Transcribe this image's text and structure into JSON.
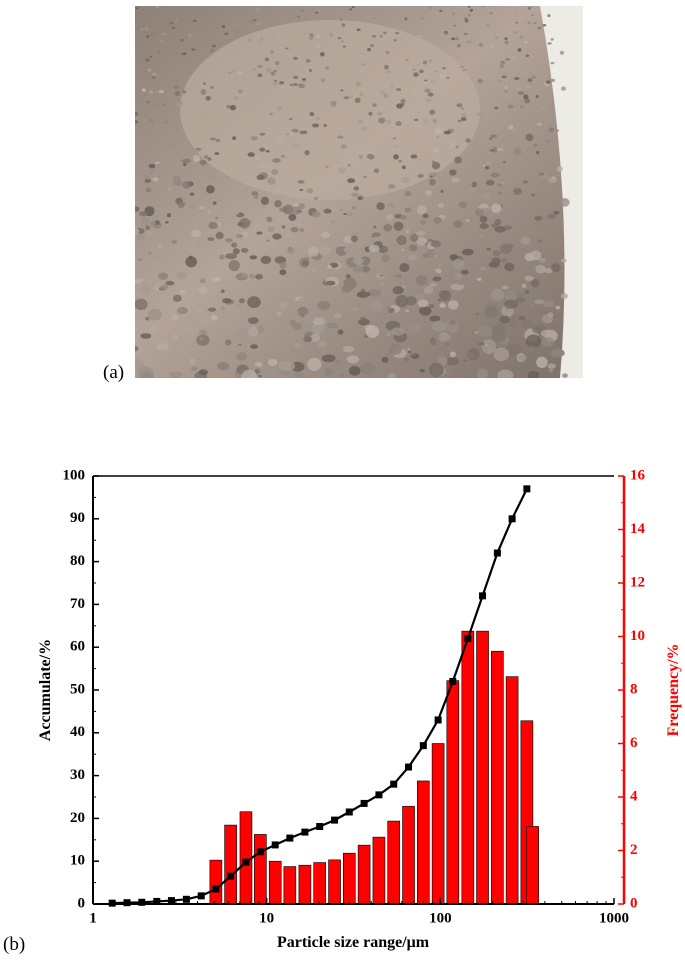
{
  "photo_label": "(a)",
  "chart_data": {
    "type": "combo",
    "panel_label": "(b)",
    "x_label": "Particle size range/μm",
    "y_label": "Accumulate/%",
    "y2_label": "Frequency/%",
    "xlim": [
      1,
      1000
    ],
    "xticks": [
      1,
      10,
      100,
      1000
    ],
    "xscale": "log",
    "ylim": [
      0,
      100
    ],
    "yticks": [
      0,
      10,
      20,
      30,
      40,
      50,
      60,
      70,
      80,
      90,
      100
    ],
    "y2lim": [
      0,
      16
    ],
    "y2ticks": [
      0,
      2,
      4,
      6,
      8,
      10,
      12,
      14,
      16
    ],
    "series": [
      {
        "type": "line",
        "color": "#000000",
        "axis": "y",
        "x": [
          1.29,
          1.57,
          1.91,
          2.33,
          2.83,
          3.45,
          4.2,
          5.1,
          6.2,
          7.6,
          9.2,
          11.2,
          13.6,
          16.6,
          20.2,
          24.6,
          29.9,
          36.4,
          44.3,
          53.9,
          65.6,
          79.8,
          97.1,
          118,
          144,
          175,
          213,
          259,
          315
        ],
        "values": [
          0.2,
          0.3,
          0.4,
          0.6,
          0.8,
          1.1,
          1.9,
          3.5,
          6.5,
          9.8,
          12.2,
          13.8,
          15.4,
          16.8,
          18.1,
          19.6,
          21.5,
          23.5,
          25.5,
          28,
          32,
          37,
          43,
          52,
          62,
          72,
          82,
          90,
          97
        ]
      },
      {
        "type": "bar",
        "color": "#ff0000",
        "axis": "y2",
        "x": [
          5.1,
          6.2,
          7.6,
          9.2,
          11.2,
          13.6,
          16.6,
          20.2,
          24.6,
          29.9,
          36.4,
          44.3,
          53.9,
          65.6,
          79.8,
          97.1,
          118,
          144,
          175,
          213,
          259,
          315,
          340
        ],
        "values": [
          1.64,
          2.95,
          3.45,
          2.6,
          1.6,
          1.4,
          1.45,
          1.55,
          1.65,
          1.9,
          2.2,
          2.5,
          3.1,
          3.65,
          4.6,
          6.0,
          8.35,
          10.2,
          10.2,
          9.45,
          8.5,
          6.85,
          2.9
        ]
      }
    ]
  }
}
